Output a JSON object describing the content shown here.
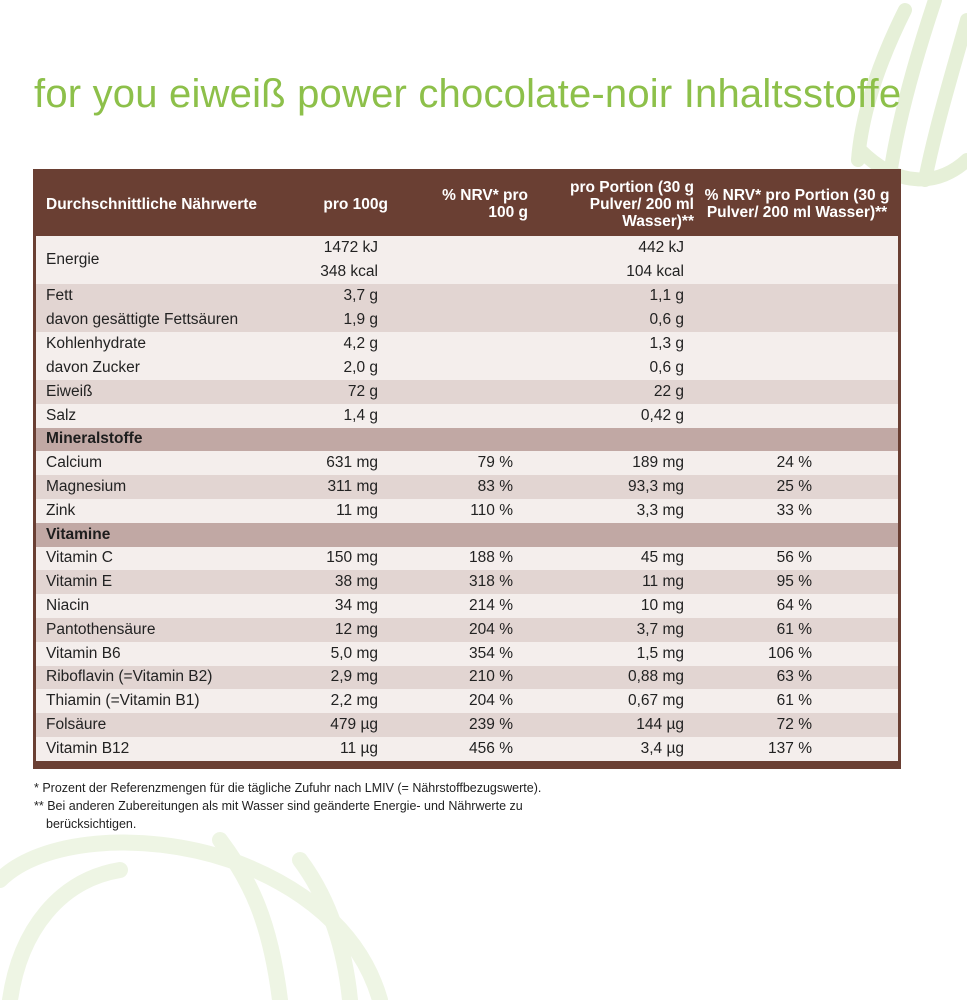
{
  "title": "for you eiweiß power chocolate-noir Inhaltsstoffe",
  "colors": {
    "title": "#8dc04a",
    "header": "#6a3f33",
    "section": "#c1a8a4",
    "row_light": "#f4eeec",
    "row_dark": "#e2d5d2"
  },
  "table": {
    "headers": [
      "Durchschnittliche Nährwerte",
      "pro 100g",
      "% NRV* pro 100 g",
      "pro Portion (30 g Pulver/ 200 ml Wasser)**",
      "% NRV* pro Portion (30 g Pulver/ 200 ml Wasser)**"
    ],
    "energy": {
      "name": "Energie",
      "per100_kj": "1472 kJ",
      "per100_kcal": "348 kcal",
      "portion_kj": "442 kJ",
      "portion_kcal": "104 kcal"
    },
    "fett": {
      "name1": "Fett",
      "name2": "davon gesättigte Fettsäuren",
      "per100_1": "3,7 g",
      "per100_2": "1,9 g",
      "portion_1": "1,1 g",
      "portion_2": "0,6 g"
    },
    "kohlenhydrate": {
      "name1": "Kohlenhydrate",
      "name2": "davon Zucker",
      "per100_1": "4,2 g",
      "per100_2": "2,0 g",
      "portion_1": "1,3 g",
      "portion_2": "0,6 g"
    },
    "eiweiss": {
      "name": "Eiweiß",
      "per100": "72 g",
      "portion": "22 g"
    },
    "salz": {
      "name": "Salz",
      "per100": "1,4 g",
      "portion": "0,42 g"
    },
    "mineral_title": "Mineralstoffe",
    "minerals": [
      {
        "name": "Calcium",
        "per100": "631 mg",
        "nrv100": "79 %",
        "portion": "189 mg",
        "nrvportion": "24 %"
      },
      {
        "name": "Magnesium",
        "per100": "311 mg",
        "nrv100": "83 %",
        "portion": "93,3 mg",
        "nrvportion": "25 %"
      },
      {
        "name": "Zink",
        "per100": "11 mg",
        "nrv100": "110 %",
        "portion": "3,3 mg",
        "nrvportion": "33 %"
      }
    ],
    "vitamin_title": "Vitamine",
    "vitamins": [
      {
        "name": "Vitamin C",
        "per100": "150 mg",
        "nrv100": "188 %",
        "portion": "45 mg",
        "nrvportion": "56 %"
      },
      {
        "name": "Vitamin E",
        "per100": "38 mg",
        "nrv100": "318 %",
        "portion": "11 mg",
        "nrvportion": "95 %"
      },
      {
        "name": "Niacin",
        "per100": "34 mg",
        "nrv100": "214 %",
        "portion": "10 mg",
        "nrvportion": "64 %"
      },
      {
        "name": "Pantothensäure",
        "per100": "12 mg",
        "nrv100": "204 %",
        "portion": "3,7 mg",
        "nrvportion": "61 %"
      },
      {
        "name": "Vitamin B6",
        "per100": "5,0 mg",
        "nrv100": "354 %",
        "portion": "1,5 mg",
        "nrvportion": "106 %"
      },
      {
        "name": "Riboflavin (=Vitamin B2)",
        "per100": "2,9 mg",
        "nrv100": "210 %",
        "portion": "0,88 mg",
        "nrvportion": "63 %"
      },
      {
        "name": "Thiamin (=Vitamin B1)",
        "per100": "2,2 mg",
        "nrv100": "204 %",
        "portion": "0,67 mg",
        "nrvportion": "61 %"
      },
      {
        "name": "Folsäure",
        "per100": "479 µg",
        "nrv100": "239 %",
        "portion": "144 µg",
        "nrvportion": "72 %"
      },
      {
        "name": "Vitamin B12",
        "per100": "11 µg",
        "nrv100": "456 %",
        "portion": "3,4 µg",
        "nrvportion": "137 %"
      }
    ]
  },
  "footnotes": {
    "note1": "* Prozent der Referenzmengen für die tägliche Zufuhr nach LMIV (= Nährstoffbezugswerte).",
    "note2_line1": "** Bei anderen Zubereitungen als mit Wasser sind geänderte Energie- und Nährwerte zu",
    "note2_line2": "berücksichtigen."
  }
}
